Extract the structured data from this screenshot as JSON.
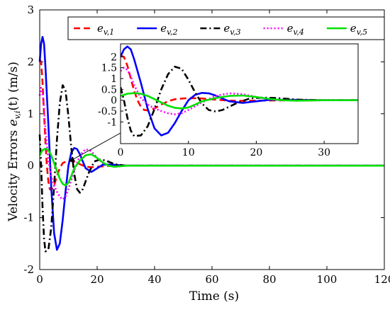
{
  "chart_data": {
    "type": "line",
    "xlabel": "Time (s)",
    "ylabel": "Velocity Errors e_{v,i}(t) (m/s)",
    "ylabel_prefix": "Velocity Errors ",
    "ylabel_symbol": "e",
    "ylabel_sub": "v,i",
    "ylabel_suffix": "(t) (m/s)",
    "xlim": [
      0,
      120
    ],
    "ylim": [
      -2,
      3
    ],
    "xticks": [
      0,
      20,
      40,
      60,
      80,
      100,
      120
    ],
    "yticks": [
      -2,
      -1,
      0,
      1,
      2,
      3
    ],
    "legend_position": "top",
    "series": [
      {
        "name": "e_{v,1}",
        "label_main": "e",
        "label_sub": "v,1",
        "color": "#ff0000",
        "dash": "dashed",
        "x": [
          0,
          0.5,
          1,
          1.5,
          2,
          2.5,
          3,
          3.5,
          4,
          5,
          6,
          7,
          8,
          10,
          12,
          14,
          16,
          18,
          20,
          25,
          30,
          40,
          120
        ],
        "y": [
          2.05,
          2.0,
          1.6,
          1.0,
          0.45,
          0.0,
          -0.3,
          -0.45,
          -0.47,
          -0.38,
          -0.2,
          -0.05,
          0.05,
          0.1,
          0.08,
          0.03,
          -0.02,
          -0.03,
          -0.02,
          0.0,
          0.0,
          0.0,
          0.0
        ]
      },
      {
        "name": "e_{v,2}",
        "label_main": "e",
        "label_sub": "v,2",
        "color": "#0000ff",
        "dash": "solid",
        "x": [
          0,
          0.5,
          1,
          1.5,
          2,
          3,
          4,
          5,
          6,
          7,
          8,
          9,
          10,
          11,
          12,
          13,
          14,
          15,
          16,
          18,
          20,
          22,
          25,
          30,
          40,
          120
        ],
        "y": [
          2.0,
          2.35,
          2.48,
          2.35,
          1.9,
          0.8,
          -0.4,
          -1.3,
          -1.62,
          -1.5,
          -1.05,
          -0.5,
          0.0,
          0.25,
          0.34,
          0.32,
          0.22,
          0.08,
          -0.05,
          -0.12,
          -0.05,
          0.02,
          0.02,
          0.0,
          0.0,
          0.0
        ]
      },
      {
        "name": "e_{v,3}",
        "label_main": "e",
        "label_sub": "v,3",
        "color": "#000000",
        "dash": "dashdot",
        "x": [
          0,
          0.5,
          1,
          1.5,
          2,
          3,
          4,
          5,
          6,
          7,
          8,
          9,
          10,
          11,
          12,
          13,
          14,
          15,
          17,
          19,
          21,
          23,
          26,
          30,
          40,
          120
        ],
        "y": [
          0.6,
          0.0,
          -0.8,
          -1.4,
          -1.65,
          -1.62,
          -1.2,
          -0.4,
          0.5,
          1.2,
          1.55,
          1.45,
          0.95,
          0.35,
          -0.15,
          -0.45,
          -0.52,
          -0.45,
          -0.15,
          0.08,
          0.12,
          0.1,
          0.03,
          0.0,
          0.0,
          0.0
        ]
      },
      {
        "name": "e_{v,4}",
        "label_main": "e",
        "label_sub": "v,4",
        "color": "#ff00ff",
        "dash": "dotted",
        "x": [
          0,
          0.5,
          1,
          1.5,
          2,
          3,
          4,
          5,
          6,
          7,
          8,
          9,
          10,
          12,
          14,
          16,
          18,
          20,
          22,
          24,
          26,
          30,
          40,
          120
        ],
        "y": [
          1.35,
          1.5,
          1.4,
          1.1,
          0.7,
          0.1,
          -0.2,
          -0.38,
          -0.5,
          -0.6,
          -0.65,
          -0.6,
          -0.45,
          -0.1,
          0.2,
          0.32,
          0.28,
          0.15,
          0.05,
          0.0,
          -0.02,
          0.0,
          0.0,
          0.0
        ]
      },
      {
        "name": "e_{v,5}",
        "label_main": "e",
        "label_sub": "v,5",
        "color": "#00e000",
        "dash": "solid",
        "x": [
          0,
          1,
          2,
          3,
          4,
          5,
          6,
          7,
          8,
          9,
          10,
          11,
          12,
          14,
          16,
          18,
          20,
          22,
          24,
          26,
          30,
          40,
          120
        ],
        "y": [
          0.2,
          0.3,
          0.33,
          0.3,
          0.2,
          0.05,
          -0.1,
          -0.25,
          -0.35,
          -0.38,
          -0.33,
          -0.2,
          -0.05,
          0.1,
          0.2,
          0.22,
          0.15,
          0.06,
          0.0,
          -0.02,
          0.0,
          0.0,
          0.0
        ]
      }
    ],
    "inset": {
      "xlim": [
        0,
        35
      ],
      "ylim": [
        -2,
        2.6
      ],
      "xticks": [
        0,
        10,
        20,
        30
      ],
      "yticks": [
        -1,
        -0.5,
        0,
        0.5,
        1,
        1.5,
        2
      ],
      "ytick_labels": [
        "-1",
        "-0.5",
        "0",
        "0.5",
        "1",
        "1.5",
        "2"
      ]
    }
  }
}
